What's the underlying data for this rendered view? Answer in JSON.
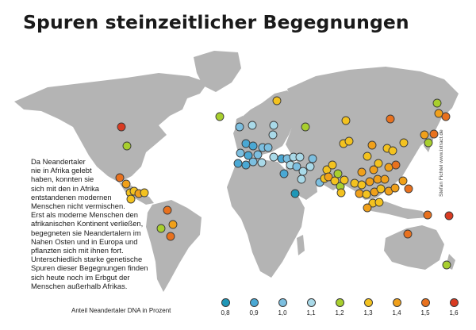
{
  "map": {
    "title": "Spuren steinzeitlicher Begegnungen",
    "description": "Da Neandertaler\nnie in Afrika gelebt\nhaben, konnten sie\nsich mit den in Afrika\nentstandenen modernen\nMenschen nicht vermischen.\nErst als moderne Menschen den\nafrikanischen Kontinent verließen,\nbegegneten sie Neandertalern im\nNahen Osten und in Europa und\npflanzten sich mit ihnen fort.\nUnterschiedlich starke genetische\nSpuren dieser Begegnungen finden\nsich heute noch im Erbgut der\nMenschen außerhalb Afrikas.",
    "credit": "Stefan Fichtel www.ixtract.de",
    "colors": {
      "land": "#b4b4b4",
      "marker_outline": "#3a3a3a"
    }
  },
  "legend": {
    "title": "Anteil Neandertaler DNA in Prozent",
    "items": [
      {
        "value": "0,8",
        "color": "#1f97b7"
      },
      {
        "value": "0,9",
        "color": "#4aa8d4"
      },
      {
        "value": "1,0",
        "color": "#7cbfe0"
      },
      {
        "value": "1,1",
        "color": "#a9d9e8"
      },
      {
        "value": "1,2",
        "color": "#a8cf2e"
      },
      {
        "value": "1,3",
        "color": "#f3c21f"
      },
      {
        "value": "1,4",
        "color": "#f0a01a"
      },
      {
        "value": "1,5",
        "color": "#e8711e"
      },
      {
        "value": "1,6",
        "color": "#d93b22"
      }
    ]
  }
}
